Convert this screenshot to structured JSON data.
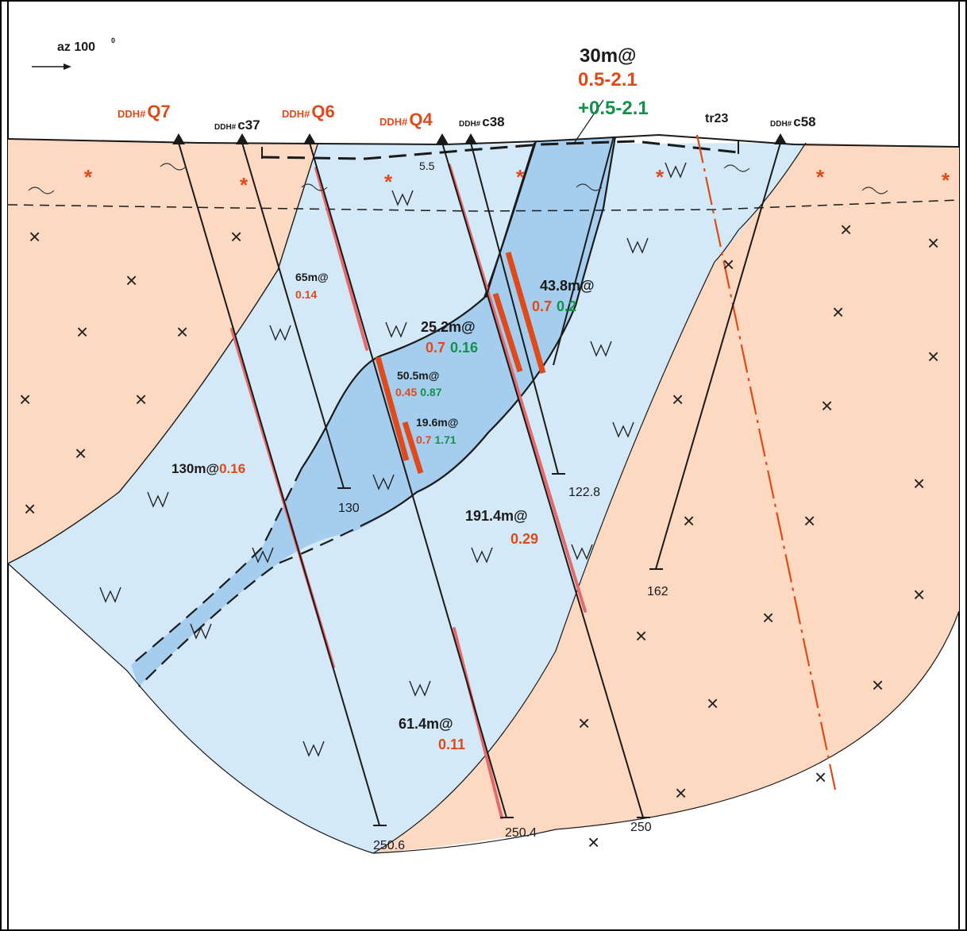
{
  "azimuth": "az 100",
  "azimuth_degree": "0",
  "summary": {
    "length": "30m@",
    "val_red": "0.5-2.1",
    "val_green": "+0.5-2.1"
  },
  "holes": [
    {
      "prefix": "DDH#",
      "name": "Q7",
      "highlight": true,
      "depth": "250.6"
    },
    {
      "prefix": "DDH#",
      "name": "c37",
      "highlight": false,
      "depth": "130"
    },
    {
      "prefix": "DDH#",
      "name": "Q6",
      "highlight": true,
      "depth": "250.4"
    },
    {
      "prefix": "DDH#",
      "name": "Q4",
      "highlight": true,
      "depth": "250"
    },
    {
      "prefix": "DDH#",
      "name": "c38",
      "highlight": false,
      "depth": "122.8"
    },
    {
      "prefix": "DDH#",
      "name": "c58",
      "highlight": false,
      "depth": "162"
    }
  ],
  "trench": {
    "name": "tr23",
    "start_depth": "5.5"
  },
  "intervals": {
    "i65": {
      "len": "65m@",
      "red": "0.14"
    },
    "i438": {
      "len": "43.8m@",
      "red": "0.7",
      "green": "0.2"
    },
    "i252": {
      "len": "25.2m@",
      "red": "0.7",
      "green": "0.16"
    },
    "i505": {
      "len": "50.5m@",
      "red": "0.45",
      "green": "0.87"
    },
    "i196": {
      "len": "19.6m@",
      "red": "0.7",
      "green": "1.71"
    },
    "i130": {
      "len": "130m@",
      "red": "0.16"
    },
    "i1914": {
      "len": "191.4m@",
      "red": "0.29"
    },
    "i614": {
      "len": "61.4m@",
      "red": "0.11"
    }
  },
  "colors": {
    "host_rock": "#fdd9c2",
    "intrusion": "#d3e9f8",
    "ore_zone": "#a4cdee",
    "red_value": "#e04a1a",
    "green_value": "#12924a",
    "mineralized_interval": "#e66a6a"
  }
}
